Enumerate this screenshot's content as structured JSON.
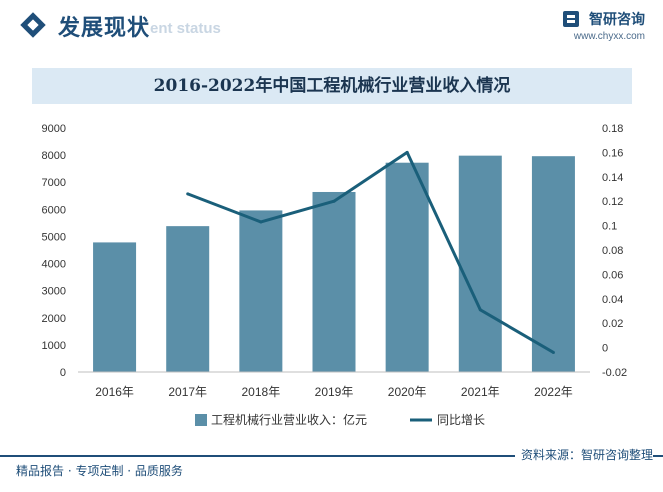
{
  "header": {
    "title": "发展现状",
    "subtitle": "ent status",
    "brand_name": "智研咨询",
    "brand_url": "www.chyxx.com"
  },
  "chart_title": "2016-2022年中国工程机械行业营业收入情况",
  "footer": {
    "left": "精品报告 · 专项定制 · 品质服务",
    "source": "资料来源：智研咨询整理"
  },
  "colors": {
    "bar": "#5b8fa8",
    "line": "#1a5f7a",
    "title_bar": "#dbe9f4",
    "brand": "#1f4e79"
  },
  "chart_data": {
    "type": "bar",
    "categories": [
      "2016年",
      "2017年",
      "2018年",
      "2019年",
      "2020年",
      "2021年",
      "2022年"
    ],
    "series": [
      {
        "name": "工程机械行业营业收入：亿元",
        "type": "bar",
        "axis": "left",
        "values": [
          4780,
          5380,
          5960,
          6640,
          7720,
          7980,
          7960
        ]
      },
      {
        "name": "同比增长",
        "type": "line",
        "axis": "right",
        "values": [
          null,
          0.126,
          0.103,
          0.12,
          0.16,
          0.031,
          -0.004
        ]
      }
    ],
    "y_left": {
      "min": 0,
      "max": 9000,
      "ticks": [
        "0",
        "1000",
        "2000",
        "3000",
        "4000",
        "5000",
        "6000",
        "7000",
        "8000",
        "9000"
      ]
    },
    "y_right": {
      "min": -0.02,
      "max": 0.18,
      "ticks": [
        "-0.02",
        "0",
        "0.02",
        "0.04",
        "0.06",
        "0.08",
        "0.1",
        "0.12",
        "0.14",
        "0.16",
        "0.18"
      ]
    },
    "legend_position": "bottom",
    "grid": false
  }
}
